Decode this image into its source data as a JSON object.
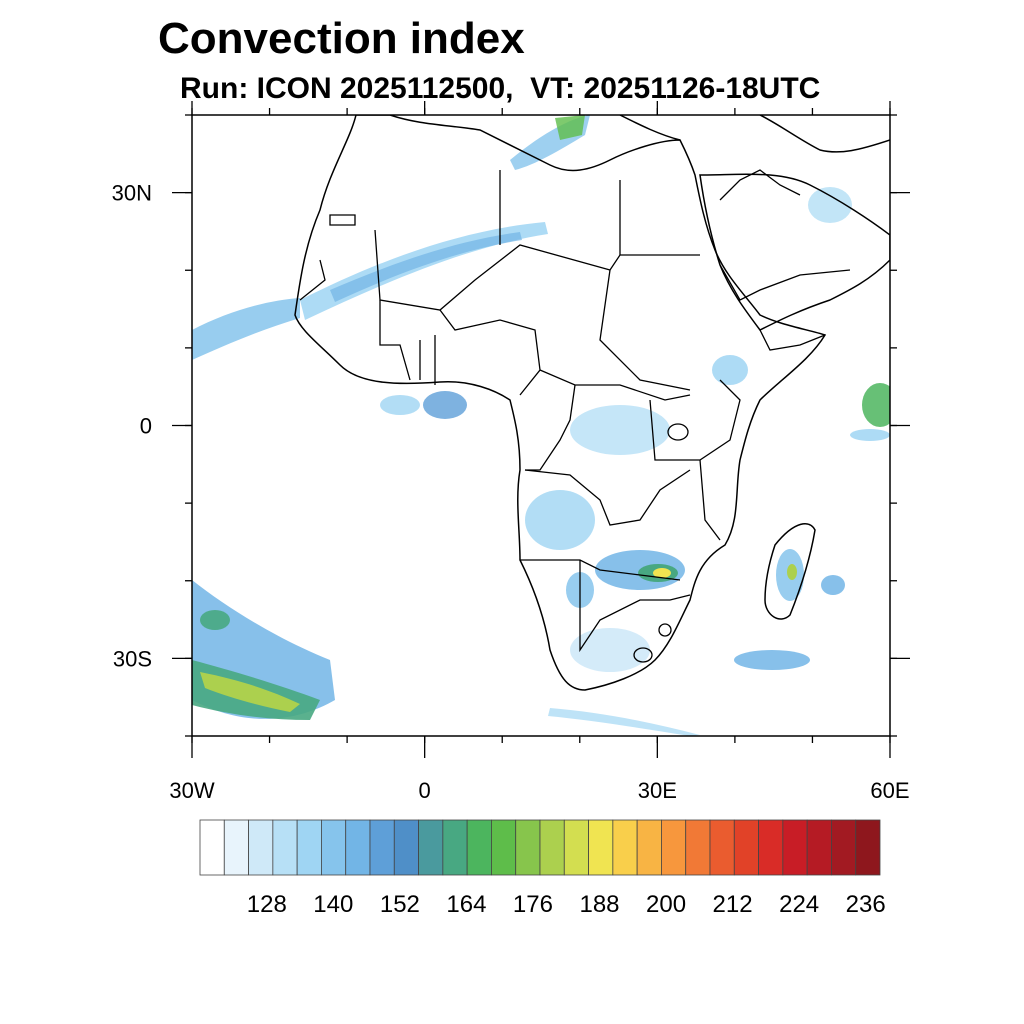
{
  "title": "Convection index",
  "subtitle": "Run: ICON 2025112500,  VT: 20251126-18UTC",
  "map": {
    "lon_range": [
      -30,
      60
    ],
    "lat_range": [
      -40,
      40
    ],
    "lat_ticks": [
      {
        "value": 30,
        "label": "30N"
      },
      {
        "value": 0,
        "label": "0"
      },
      {
        "value": -30,
        "label": "30S"
      }
    ],
    "lon_ticks": [
      {
        "value": -30,
        "label": "30W"
      },
      {
        "value": 0,
        "label": "0"
      },
      {
        "value": 30,
        "label": "30E"
      },
      {
        "value": 60,
        "label": "60E"
      }
    ]
  },
  "colorbar": {
    "colors": [
      "#ffffff",
      "#e8f4fc",
      "#cfe9f8",
      "#b7e0f6",
      "#9fd5f3",
      "#86c4ec",
      "#72b5e6",
      "#5e9fd8",
      "#4f8fc8",
      "#4a9a9e",
      "#48a882",
      "#4cb55e",
      "#5ebd4a",
      "#87c54c",
      "#acd04e",
      "#d3de50",
      "#f0e451",
      "#f9cf4b",
      "#f8b444",
      "#f7973d",
      "#f17936",
      "#ea5c2f",
      "#e14228",
      "#d92c27",
      "#c81d26",
      "#b51b24",
      "#a21a22",
      "#8e171d"
    ],
    "labels": [
      "128",
      "140",
      "152",
      "164",
      "176",
      "188",
      "200",
      "212",
      "224",
      "236"
    ]
  }
}
